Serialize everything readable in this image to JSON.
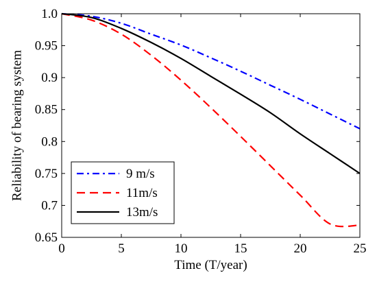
{
  "chart_data": {
    "type": "line",
    "title": "",
    "xlabel": "Time (T/year)",
    "ylabel": "Reliability of bearing system",
    "xlim": [
      0,
      25
    ],
    "ylim": [
      0.65,
      1.0
    ],
    "xticks": [
      "0",
      "5",
      "10",
      "15",
      "20",
      "25"
    ],
    "yticks": [
      "0.65",
      "0.7",
      "0.75",
      "0.8",
      "0.85",
      "0.9",
      "0.95",
      "1.0"
    ],
    "grid": false,
    "legend_position": "bottom-left",
    "x": [
      0,
      2.5,
      5,
      7.5,
      10,
      12.5,
      15,
      17.5,
      20,
      22.5,
      25
    ],
    "series": [
      {
        "name": "9 m/s",
        "color": "#0000ff",
        "line_style": "dash-dot",
        "values": [
          1.0,
          0.996,
          0.985,
          0.968,
          0.951,
          0.931,
          0.91,
          0.888,
          0.866,
          0.843,
          0.82
        ]
      },
      {
        "name": "11m/s",
        "color": "#ff0000",
        "line_style": "dashed",
        "values": [
          1.0,
          0.99,
          0.968,
          0.935,
          0.896,
          0.853,
          0.808,
          0.762,
          0.716,
          0.671,
          0.669
        ]
      },
      {
        "name": "13m/s",
        "color": "#000000",
        "line_style": "solid",
        "values": [
          1.0,
          0.994,
          0.977,
          0.955,
          0.93,
          0.902,
          0.874,
          0.845,
          0.812,
          0.781,
          0.75
        ]
      }
    ]
  }
}
